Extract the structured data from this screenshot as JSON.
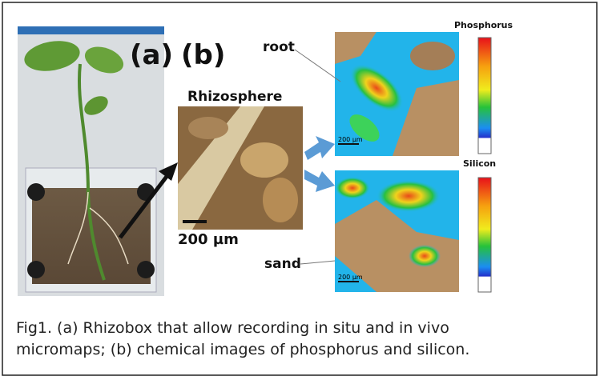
{
  "figure": {
    "label_a": "(a)",
    "label_b": "(b)",
    "rhizosphere": "Rhizosphere",
    "scale_main": "200 µm",
    "root": "root",
    "sand": "sand",
    "map_top_title": "Phosphorus",
    "map_bottom_title": "Silicon",
    "map_top_scale": "200 µm",
    "map_bottom_scale": "200 µm"
  },
  "caption": {
    "lines": [
      "Fig1. (a) Rhizobox that allow recording in situ and in vivo",
      "micromaps; (b) chemical images of phosphorus and silicon."
    ]
  }
}
